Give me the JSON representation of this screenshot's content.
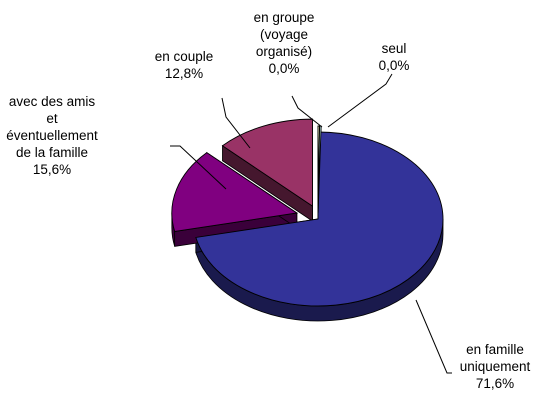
{
  "chart_data": {
    "type": "pie",
    "style": "3d-exploded",
    "title": "",
    "slices": [
      {
        "label": "en famille uniquement",
        "value": 71.6,
        "display": "71,6%",
        "color": "#333399",
        "label_lines": [
          "en famille",
          "uniquement",
          "71,6%"
        ]
      },
      {
        "label": "avec des amis et éventuellement de la famille",
        "value": 15.6,
        "display": "15,6%",
        "color": "#800080",
        "label_lines": [
          "avec des amis",
          "et",
          "éventuellement",
          "de la famille",
          "15,6%"
        ]
      },
      {
        "label": "en couple",
        "value": 12.8,
        "display": "12,8%",
        "color": "#993366",
        "label_lines": [
          "en couple",
          "12,8%"
        ]
      },
      {
        "label": "en groupe (voyage organisé)",
        "value": 0.0,
        "display": "0,0%",
        "color": "#ffffcc",
        "label_lines": [
          "en groupe",
          "(voyage",
          "organisé)",
          "0,0%"
        ]
      },
      {
        "label": "seul",
        "value": 0.0,
        "display": "0,0%",
        "color": "#ccffff",
        "label_lines": [
          "seul",
          "0,0%"
        ]
      }
    ]
  }
}
